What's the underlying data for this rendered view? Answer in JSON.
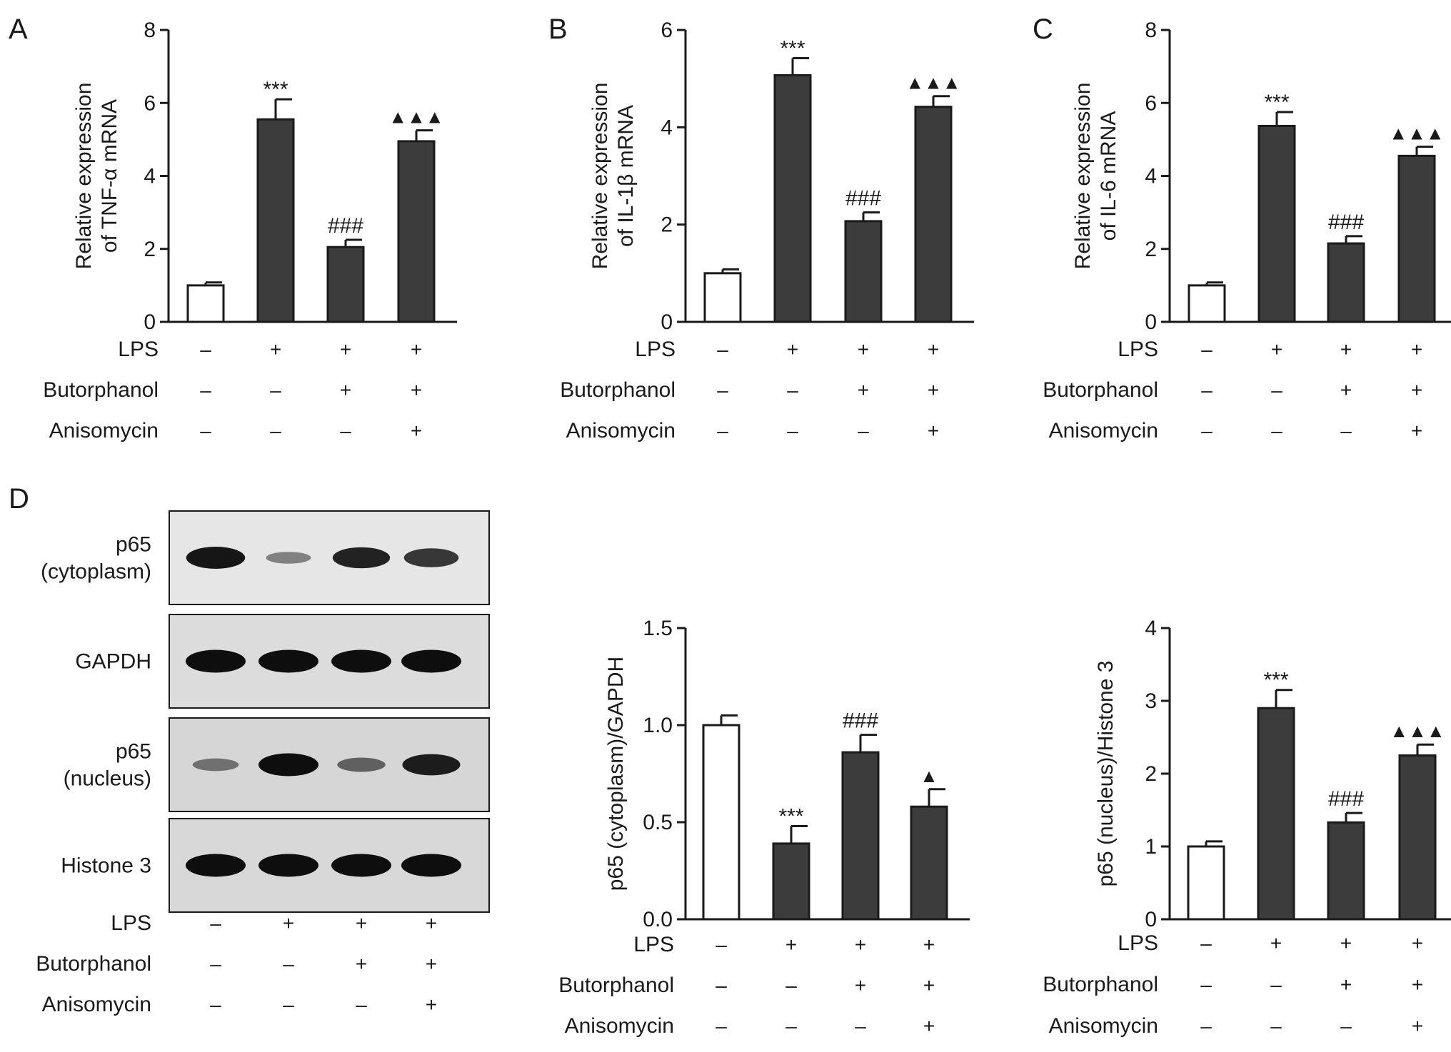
{
  "colors": {
    "control_fill": "#ffffff",
    "treated_fill": "#3c3c3c",
    "axis": "#1a1a1a"
  },
  "condition_rows": [
    {
      "label": "LPS",
      "values": [
        "–",
        "+",
        "+",
        "+"
      ]
    },
    {
      "label": "Butorphanol",
      "values": [
        "–",
        "–",
        "+",
        "+"
      ]
    },
    {
      "label": "Anisomycin",
      "values": [
        "–",
        "–",
        "–",
        "+"
      ]
    }
  ],
  "panel_letters": [
    "A",
    "B",
    "C",
    "D"
  ],
  "blot": {
    "rows": [
      {
        "label_lines": [
          "p65",
          "(cytoplasm)"
        ],
        "background": "#e6e6e6",
        "band_intensity": [
          0.95,
          0.3,
          0.88,
          0.75
        ]
      },
      {
        "label_lines": [
          "GAPDH"
        ],
        "background": "#dcdcdc",
        "band_intensity": [
          1.0,
          1.0,
          1.0,
          1.0
        ]
      },
      {
        "label_lines": [
          "p65",
          "(nucleus)"
        ],
        "background": "#d6d6d6",
        "band_intensity": [
          0.35,
          1.0,
          0.45,
          0.9
        ]
      },
      {
        "label_lines": [
          "Histone 3"
        ],
        "background": "#d8d8d8",
        "band_intensity": [
          1.0,
          1.0,
          1.0,
          1.0
        ]
      }
    ]
  },
  "chart_data": [
    {
      "panel": "A",
      "type": "bar",
      "ylabel": [
        "Relative expression",
        "of TNF-α mRNA"
      ],
      "ylim": [
        0,
        8
      ],
      "yticks": [
        "0",
        "2",
        "4",
        "6",
        "8"
      ],
      "values": [
        1.0,
        5.55,
        2.05,
        4.95
      ],
      "errors": [
        0.08,
        0.55,
        0.2,
        0.3
      ],
      "annotations": [
        "",
        "***",
        "###",
        "▲▲▲"
      ]
    },
    {
      "panel": "B",
      "type": "bar",
      "ylabel": [
        "Relative expression",
        "of IL-1β mRNA"
      ],
      "ylim": [
        0,
        6
      ],
      "yticks": [
        "0",
        "2",
        "4",
        "6"
      ],
      "values": [
        1.0,
        5.07,
        2.07,
        4.42
      ],
      "errors": [
        0.08,
        0.35,
        0.18,
        0.22
      ],
      "annotations": [
        "",
        "***",
        "###",
        "▲▲▲"
      ]
    },
    {
      "panel": "C",
      "type": "bar",
      "ylabel": [
        "Relative expression",
        "of IL-6 mRNA"
      ],
      "ylim": [
        0,
        8
      ],
      "yticks": [
        "0",
        "2",
        "4",
        "6",
        "8"
      ],
      "values": [
        1.0,
        5.37,
        2.15,
        4.55
      ],
      "errors": [
        0.08,
        0.38,
        0.2,
        0.25
      ],
      "annotations": [
        "",
        "***",
        "###",
        "▲▲▲"
      ]
    },
    {
      "panel": "D-cytoplasm",
      "type": "bar",
      "ylabel": [
        "p65 (cytoplasm)/GAPDH"
      ],
      "ylim": [
        0,
        1.5
      ],
      "yticks": [
        "0.0",
        "0.5",
        "1.0",
        "1.5"
      ],
      "values": [
        1.0,
        0.39,
        0.86,
        0.58
      ],
      "errors": [
        0.05,
        0.09,
        0.09,
        0.09
      ],
      "annotations": [
        "",
        "***",
        "###",
        "▲"
      ]
    },
    {
      "panel": "D-nucleus",
      "type": "bar",
      "ylabel": [
        "p65 (nucleus)/Histone 3"
      ],
      "ylim": [
        0,
        4
      ],
      "yticks": [
        "0",
        "1",
        "2",
        "3",
        "4"
      ],
      "values": [
        1.0,
        2.9,
        1.33,
        2.25
      ],
      "errors": [
        0.07,
        0.25,
        0.13,
        0.15
      ],
      "annotations": [
        "",
        "***",
        "###",
        "▲▲▲"
      ]
    }
  ]
}
